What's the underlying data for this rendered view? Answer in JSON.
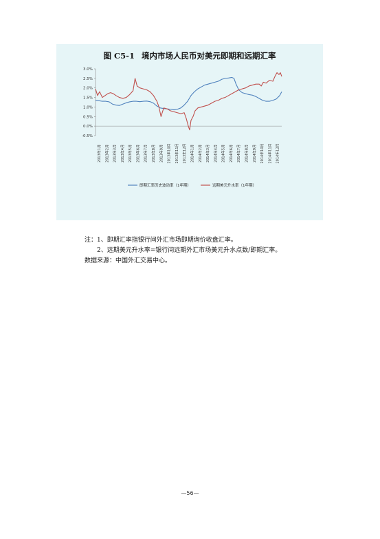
{
  "figure": {
    "label": "图 C5-1",
    "title": "境内市场人民币对美元即期和远期汇率"
  },
  "notes": {
    "note1": "注：1、即期汇率指银行间外汇市场即期询价收盘汇率。",
    "note2": "2、远期美元升水率=银行间远期外汇市场美元升水点数/即期汇率。",
    "source": "数据来源：中国外汇交易中心。"
  },
  "page_number": "—56—",
  "chart_data": {
    "type": "line",
    "ylim": [
      -0.5,
      3.0
    ],
    "yticks": [
      "3.0%",
      "2.5%",
      "2.0%",
      "1.5%",
      "1.0%",
      "0.5%",
      "0.0%",
      "-0.5%"
    ],
    "x": [
      "2013年1月",
      "2013年2月",
      "2013年3月",
      "2013年4月",
      "2013年5月",
      "2013年6月",
      "2013年7月",
      "2013年8月",
      "2013年9月",
      "2013年10月",
      "2013年11月",
      "2013年12月",
      "2014年1月",
      "2014年2月",
      "2014年3月",
      "2014年4月",
      "2014年5月",
      "2014年6月",
      "2014年7月",
      "2014年8月",
      "2014年9月",
      "2014年10月",
      "2014年11月",
      "2014年12月"
    ],
    "legend_position": "bottom",
    "colors": {
      "spot": "#4f81bd",
      "forward": "#c0504d"
    },
    "series": [
      {
        "name": "即期汇率历史波动率（1年期）",
        "color": "#4f81bd",
        "values": [
          [
            0,
            1.35
          ],
          [
            0.5,
            1.33
          ],
          [
            1,
            1.3
          ],
          [
            1.5,
            1.3
          ],
          [
            2,
            1.27
          ],
          [
            2.5,
            1.15
          ],
          [
            3,
            1.1
          ],
          [
            3.5,
            1.08
          ],
          [
            4,
            1.15
          ],
          [
            4.5,
            1.22
          ],
          [
            5,
            1.27
          ],
          [
            5.5,
            1.3
          ],
          [
            6,
            1.3
          ],
          [
            6.5,
            1.28
          ],
          [
            7,
            1.3
          ],
          [
            7.5,
            1.31
          ],
          [
            8,
            1.28
          ],
          [
            8.5,
            1.2
          ],
          [
            9,
            1.05
          ],
          [
            9.5,
            0.95
          ],
          [
            10,
            0.92
          ],
          [
            10.5,
            0.9
          ],
          [
            11,
            0.88
          ],
          [
            11.5,
            0.85
          ],
          [
            12,
            0.88
          ],
          [
            12.5,
            0.95
          ],
          [
            13,
            1.1
          ],
          [
            13.5,
            1.3
          ],
          [
            14,
            1.6
          ],
          [
            14.5,
            1.8
          ],
          [
            15,
            1.95
          ],
          [
            15.5,
            2.05
          ],
          [
            16,
            2.15
          ],
          [
            16.5,
            2.2
          ],
          [
            17,
            2.25
          ],
          [
            17.5,
            2.3
          ],
          [
            18,
            2.35
          ],
          [
            18.5,
            2.45
          ],
          [
            19,
            2.5
          ],
          [
            19.5,
            2.52
          ],
          [
            20,
            2.55
          ],
          [
            20.3,
            2.5
          ],
          [
            20.6,
            2.2
          ],
          [
            21,
            1.9
          ],
          [
            21.5,
            1.75
          ],
          [
            22,
            1.7
          ],
          [
            22.5,
            1.65
          ],
          [
            23,
            1.62
          ],
          [
            23.5,
            1.55
          ],
          [
            24,
            1.45
          ],
          [
            24.5,
            1.35
          ],
          [
            25,
            1.3
          ],
          [
            25.5,
            1.3
          ],
          [
            26,
            1.35
          ],
          [
            26.5,
            1.42
          ],
          [
            27,
            1.6
          ],
          [
            27.3,
            1.8
          ]
        ]
      },
      {
        "name": "远期美元升水率（1年期）",
        "color": "#c0504d",
        "values": [
          [
            0,
            1.95
          ],
          [
            0.3,
            1.6
          ],
          [
            0.6,
            1.8
          ],
          [
            1,
            1.5
          ],
          [
            1.4,
            1.6
          ],
          [
            1.8,
            1.7
          ],
          [
            2.2,
            1.75
          ],
          [
            2.6,
            1.7
          ],
          [
            3,
            1.6
          ],
          [
            3.5,
            1.5
          ],
          [
            4,
            1.45
          ],
          [
            4.5,
            1.5
          ],
          [
            5,
            1.65
          ],
          [
            5.5,
            1.85
          ],
          [
            5.8,
            2.5
          ],
          [
            6.1,
            2.1
          ],
          [
            6.5,
            2.0
          ],
          [
            7,
            1.95
          ],
          [
            7.5,
            1.9
          ],
          [
            8,
            1.8
          ],
          [
            8.5,
            1.6
          ],
          [
            9,
            1.3
          ],
          [
            9.3,
            1.0
          ],
          [
            9.6,
            0.5
          ],
          [
            10,
            0.95
          ],
          [
            10.5,
            0.9
          ],
          [
            11,
            0.8
          ],
          [
            11.5,
            0.75
          ],
          [
            12,
            0.7
          ],
          [
            12.5,
            0.65
          ],
          [
            13,
            0.7
          ],
          [
            13.3,
            0.4
          ],
          [
            13.6,
            0.0
          ],
          [
            13.8,
            -0.2
          ],
          [
            14,
            0.3
          ],
          [
            14.3,
            0.5
          ],
          [
            14.6,
            0.8
          ],
          [
            15,
            0.95
          ],
          [
            15.5,
            1.0
          ],
          [
            16,
            1.05
          ],
          [
            16.5,
            1.1
          ],
          [
            17,
            1.2
          ],
          [
            17.5,
            1.3
          ],
          [
            18,
            1.35
          ],
          [
            18.5,
            1.45
          ],
          [
            19,
            1.5
          ],
          [
            19.5,
            1.6
          ],
          [
            20,
            1.7
          ],
          [
            20.5,
            1.8
          ],
          [
            21,
            1.9
          ],
          [
            21.5,
            1.95
          ],
          [
            22,
            2.0
          ],
          [
            22.5,
            2.1
          ],
          [
            23,
            2.15
          ],
          [
            23.5,
            2.2
          ],
          [
            24,
            2.2
          ],
          [
            24.3,
            2.1
          ],
          [
            24.6,
            2.3
          ],
          [
            25,
            2.25
          ],
          [
            25.5,
            2.4
          ],
          [
            26,
            2.35
          ],
          [
            26.3,
            2.6
          ],
          [
            26.6,
            2.8
          ],
          [
            26.9,
            2.7
          ],
          [
            27.1,
            2.8
          ],
          [
            27.3,
            2.6
          ]
        ]
      }
    ]
  }
}
